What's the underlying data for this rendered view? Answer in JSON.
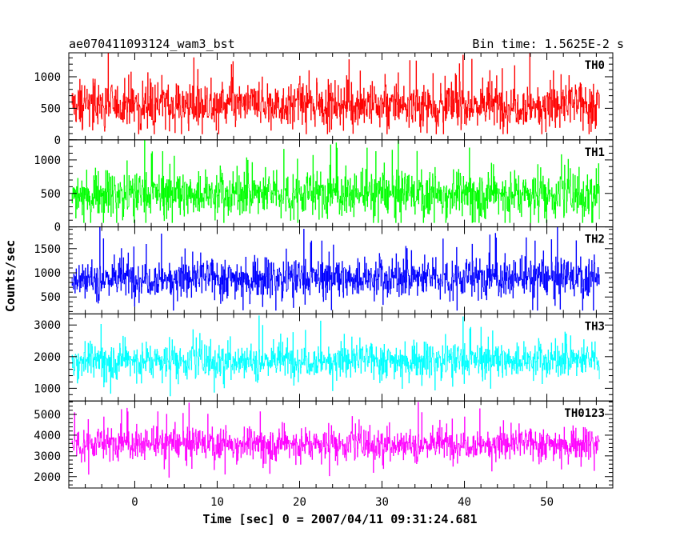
{
  "chart_data": {
    "type": "line",
    "title_left": "ae070411093124_wam3_bst",
    "title_right": "Bin time: 1.5625E-2 s",
    "xlabel": "Time [sec] 0 = 2007/04/11 09:31:24.681",
    "ylabel": "Counts/sec",
    "xlim": [
      -8,
      58
    ],
    "x_range": [
      -7.6,
      56.4
    ],
    "x_ticks": [
      0,
      10,
      20,
      30,
      40,
      50
    ],
    "panels": [
      {
        "name": "TH0",
        "color": "#ff0000",
        "ylim": [
          0,
          1380
        ],
        "y_ticks": [
          0,
          500,
          1000
        ],
        "baseline": 560,
        "spread": 250,
        "min": 90,
        "max": 1380
      },
      {
        "name": "TH1",
        "color": "#00ff00",
        "ylim": [
          0,
          1300
        ],
        "y_ticks": [
          0,
          500,
          1000
        ],
        "baseline": 500,
        "spread": 230,
        "min": 60,
        "max": 1300
      },
      {
        "name": "TH2",
        "color": "#0000ff",
        "ylim": [
          150,
          1950
        ],
        "y_ticks": [
          500,
          1000,
          1500
        ],
        "baseline": 900,
        "spread": 280,
        "min": 220,
        "max": 1950
      },
      {
        "name": "TH3",
        "color": "#00ffff",
        "ylim": [
          600,
          3350
        ],
        "y_ticks": [
          1000,
          2000,
          3000
        ],
        "baseline": 1900,
        "spread": 380,
        "min": 700,
        "max": 3300
      },
      {
        "name": "TH0123",
        "color": "#ff00ff",
        "ylim": [
          1450,
          5650
        ],
        "y_ticks": [
          2000,
          3000,
          4000,
          5000
        ],
        "baseline": 3600,
        "spread": 520,
        "min": 1550,
        "max": 5600
      }
    ]
  }
}
